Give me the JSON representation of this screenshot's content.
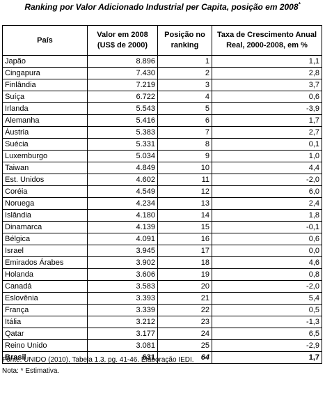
{
  "title": {
    "main": "Ranking por Valor Adicionado Industrial per Capita",
    "rest": ", posição em 2008",
    "mark": "*"
  },
  "columns": [
    "País",
    "Valor em 2008 (US$ de 2000)",
    "Posição no ranking",
    "Taxa de Crescimento Anual Real, 2000-2008, em %"
  ],
  "rows": [
    {
      "country": "Japão",
      "value": "8.896",
      "rank": "1",
      "growth": "1,1"
    },
    {
      "country": "Cingapura",
      "value": "7.430",
      "rank": "2",
      "growth": "2,8"
    },
    {
      "country": "Finlândia",
      "value": "7.219",
      "rank": "3",
      "growth": "3,7"
    },
    {
      "country": "Suíça",
      "value": "6.722",
      "rank": "4",
      "growth": "0,6"
    },
    {
      "country": "Irlanda",
      "value": "5.543",
      "rank": "5",
      "growth": "-3,9"
    },
    {
      "country": "Alemanha",
      "value": "5.416",
      "rank": "6",
      "growth": "1,7"
    },
    {
      "country": "Áustria",
      "value": "5.383",
      "rank": "7",
      "growth": "2,7"
    },
    {
      "country": "Suécia",
      "value": "5.331",
      "rank": "8",
      "growth": "0,1"
    },
    {
      "country": "Luxemburgo",
      "value": "5.034",
      "rank": "9",
      "growth": "1,0"
    },
    {
      "country": "Taiwan",
      "value": "4.849",
      "rank": "10",
      "growth": "4,4"
    },
    {
      "country": "Est. Unidos",
      "value": "4.602",
      "rank": "11",
      "growth": "-2,0"
    },
    {
      "country": "Coréia",
      "value": "4.549",
      "rank": "12",
      "growth": "6,0"
    },
    {
      "country": "Noruega",
      "value": "4.234",
      "rank": "13",
      "growth": "2,4"
    },
    {
      "country": "Islândia",
      "value": "4.180",
      "rank": "14",
      "growth": "1,8"
    },
    {
      "country": "Dinamarca",
      "value": "4.139",
      "rank": "15",
      "growth": "-0,1"
    },
    {
      "country": "Bélgica",
      "value": "4.091",
      "rank": "16",
      "growth": "0,6"
    },
    {
      "country": "Israel",
      "value": "3.945",
      "rank": "17",
      "growth": "0,0"
    },
    {
      "country": "Emirados Árabes",
      "value": "3.902",
      "rank": "18",
      "growth": "4,6"
    },
    {
      "country": "Holanda",
      "value": "3.606",
      "rank": "19",
      "growth": "0,8"
    },
    {
      "country": "Canadá",
      "value": "3.583",
      "rank": "20",
      "growth": "-2,0"
    },
    {
      "country": "Eslovênia",
      "value": "3.393",
      "rank": "21",
      "growth": "5,4"
    },
    {
      "country": "França",
      "value": "3.339",
      "rank": "22",
      "growth": "0,5"
    },
    {
      "country": "Itália",
      "value": "3.212",
      "rank": "23",
      "growth": "-1,3"
    },
    {
      "country": "Qatar",
      "value": "3.177",
      "rank": "24",
      "growth": "6,5"
    },
    {
      "country": "Reino Unido",
      "value": "3.081",
      "rank": "25",
      "growth": "-2,9"
    }
  ],
  "total": {
    "country": "Brasil",
    "value": "631",
    "rank": "64",
    "growth": "1,7"
  },
  "footer": {
    "source": "Fonte: UNIDO (2010), Tabela 1.3, pg. 41-46. Elaboração IEDI.",
    "note": "Nota: * Estimativa."
  }
}
